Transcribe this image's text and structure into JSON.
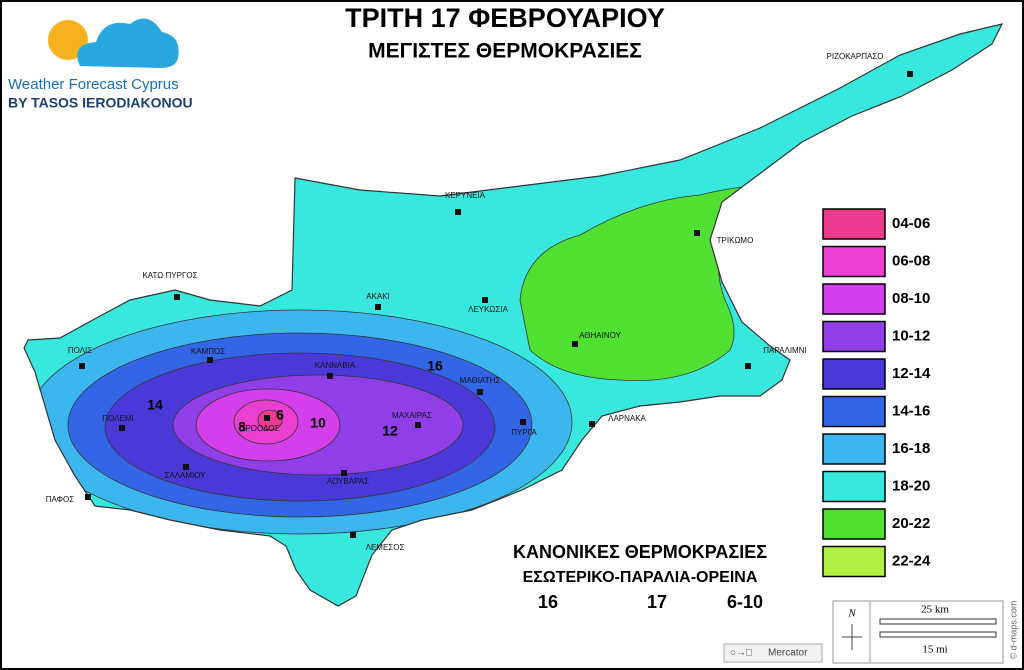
{
  "header": {
    "title": "ΤΡΙΤΗ 17 ΦΕΒΡΟΥΑΡΙΟΥ",
    "subtitle": "ΜΕΓΙΣΤΕΣ ΘΕΡΜΟΚΡΑΣΙΕΣ"
  },
  "logo": {
    "name": "Weather Forecast Cyprus",
    "byline": "BY TASOS IERODIAKONOU"
  },
  "places": [
    {
      "name": "ΡΙΖΟΚΑΡΠΑΣΟ"
    },
    {
      "name": "ΚΕΡΥΝΕΙΑ"
    },
    {
      "name": "ΤΡΙΚΩΜΟ"
    },
    {
      "name": "ΚΑΤΩ ΠΥΡΓΟΣ"
    },
    {
      "name": "ΑΚΑΚΙ"
    },
    {
      "name": "ΛΕΥΚΩΣΙΑ"
    },
    {
      "name": "ΑΘΗΑΙΝΟΥ"
    },
    {
      "name": "ΠΑΡΑΛΙΜΝΙ"
    },
    {
      "name": "ΠΟΛΙΣ"
    },
    {
      "name": "ΚΑΜΠΟΣ"
    },
    {
      "name": "ΚΑΝΝΑΒΙΑ"
    },
    {
      "name": "ΜΑΘΙΑΤΗΣ"
    },
    {
      "name": "ΠΟΛΕΜΙ"
    },
    {
      "name": "ΤΡΟΟΔΟΣ"
    },
    {
      "name": "ΜΑΧΑΙΡΑΣ"
    },
    {
      "name": "ΠΥΡΓΑ"
    },
    {
      "name": "ΛΑΡΝΑΚΑ"
    },
    {
      "name": "ΠΑΦΟΣ"
    },
    {
      "name": "ΣΑΛΑΜΙΟΥ"
    },
    {
      "name": "ΛΟΥΒΑΡΑΣ"
    },
    {
      "name": "ΛΕΜΕΣΟΣ"
    }
  ],
  "isotherm_labels": [
    16,
    14,
    12,
    10,
    8,
    6
  ],
  "legend": [
    {
      "label": "04-06",
      "color": "#ec3a8e"
    },
    {
      "label": "06-08",
      "color": "#ea3fd0"
    },
    {
      "label": "08-10",
      "color": "#d33fea"
    },
    {
      "label": "10-12",
      "color": "#8f3ee8"
    },
    {
      "label": "12-14",
      "color": "#4a38d9"
    },
    {
      "label": "14-16",
      "color": "#3366e6"
    },
    {
      "label": "16-18",
      "color": "#3cb6ef"
    },
    {
      "label": "18-20",
      "color": "#38e8de"
    },
    {
      "label": "20-22",
      "color": "#4fe032"
    },
    {
      "label": "22-24",
      "color": "#b0f042"
    }
  ],
  "normals": {
    "title": "ΚΑΝΟΝΙΚΕΣ ΘΕΡΜΟΚΡΑΣΙΕΣ",
    "subtitle": "ΕΣΩΤΕΡΙΚΟ-ΠΑΡΑΛΙΑ-ΟΡΕΙΝΑ",
    "values": [
      16,
      17,
      "6-10"
    ]
  },
  "scale": {
    "north": "N",
    "km": "25 km",
    "mi": "15 mi",
    "projection": "Mercator",
    "credit": "© d-maps.com"
  }
}
